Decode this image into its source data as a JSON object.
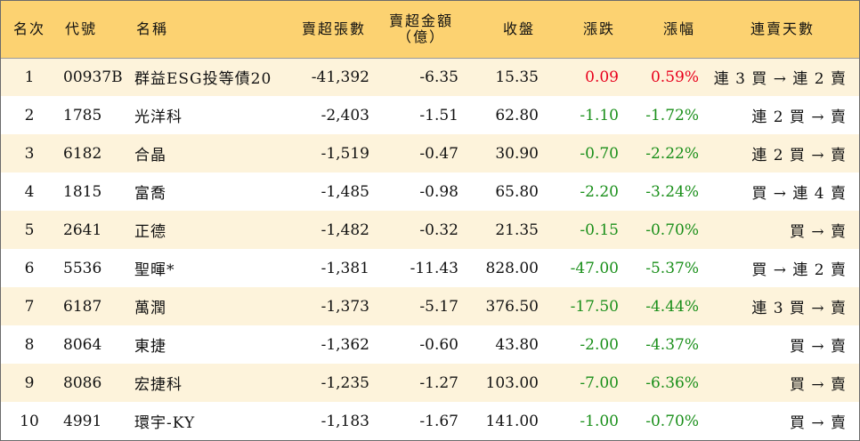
{
  "colors": {
    "header_bg": "#fcd271",
    "row_alt_bg": "#fdf3db",
    "up": "#e8001c",
    "down": "#1a8f1a"
  },
  "headers": {
    "rank": "名次",
    "code": "代號",
    "name": "名稱",
    "net_sell_lots": "賣超張數",
    "net_sell_amount": "賣超金額",
    "net_sell_amount_unit": "（億）",
    "close": "收盤",
    "change": "漲跌",
    "change_pct": "漲幅",
    "streak": "連賣天數"
  },
  "rows": [
    {
      "rank": "1",
      "code": "00937B",
      "name": "群益ESG投等債20",
      "lots": "-41,392",
      "amount": "-6.35",
      "close": "15.35",
      "change": "0.09",
      "pct": "0.59%",
      "streak": "連 3 買 → 連 2 賣",
      "dir": "up"
    },
    {
      "rank": "2",
      "code": "1785",
      "name": "光洋科",
      "lots": "-2,403",
      "amount": "-1.51",
      "close": "62.80",
      "change": "-1.10",
      "pct": "-1.72%",
      "streak": "連 2 買 → 賣",
      "dir": "down"
    },
    {
      "rank": "3",
      "code": "6182",
      "name": "合晶",
      "lots": "-1,519",
      "amount": "-0.47",
      "close": "30.90",
      "change": "-0.70",
      "pct": "-2.22%",
      "streak": "連 2 買 → 賣",
      "dir": "down"
    },
    {
      "rank": "4",
      "code": "1815",
      "name": "富喬",
      "lots": "-1,485",
      "amount": "-0.98",
      "close": "65.80",
      "change": "-2.20",
      "pct": "-3.24%",
      "streak": "買 → 連 4 賣",
      "dir": "down"
    },
    {
      "rank": "5",
      "code": "2641",
      "name": "正德",
      "lots": "-1,482",
      "amount": "-0.32",
      "close": "21.35",
      "change": "-0.15",
      "pct": "-0.70%",
      "streak": "買 → 賣",
      "dir": "down"
    },
    {
      "rank": "6",
      "code": "5536",
      "name": "聖暉*",
      "lots": "-1,381",
      "amount": "-11.43",
      "close": "828.00",
      "change": "-47.00",
      "pct": "-5.37%",
      "streak": "買 → 連 2 賣",
      "dir": "down"
    },
    {
      "rank": "7",
      "code": "6187",
      "name": "萬潤",
      "lots": "-1,373",
      "amount": "-5.17",
      "close": "376.50",
      "change": "-17.50",
      "pct": "-4.44%",
      "streak": "連 3 買 → 賣",
      "dir": "down"
    },
    {
      "rank": "8",
      "code": "8064",
      "name": "東捷",
      "lots": "-1,362",
      "amount": "-0.60",
      "close": "43.80",
      "change": "-2.00",
      "pct": "-4.37%",
      "streak": "買 → 賣",
      "dir": "down"
    },
    {
      "rank": "9",
      "code": "8086",
      "name": "宏捷科",
      "lots": "-1,235",
      "amount": "-1.27",
      "close": "103.00",
      "change": "-7.00",
      "pct": "-6.36%",
      "streak": "買 → 賣",
      "dir": "down"
    },
    {
      "rank": "10",
      "code": "4991",
      "name": "環宇-KY",
      "lots": "-1,183",
      "amount": "-1.67",
      "close": "141.00",
      "change": "-1.00",
      "pct": "-0.70%",
      "streak": "買 → 賣",
      "dir": "down"
    }
  ]
}
